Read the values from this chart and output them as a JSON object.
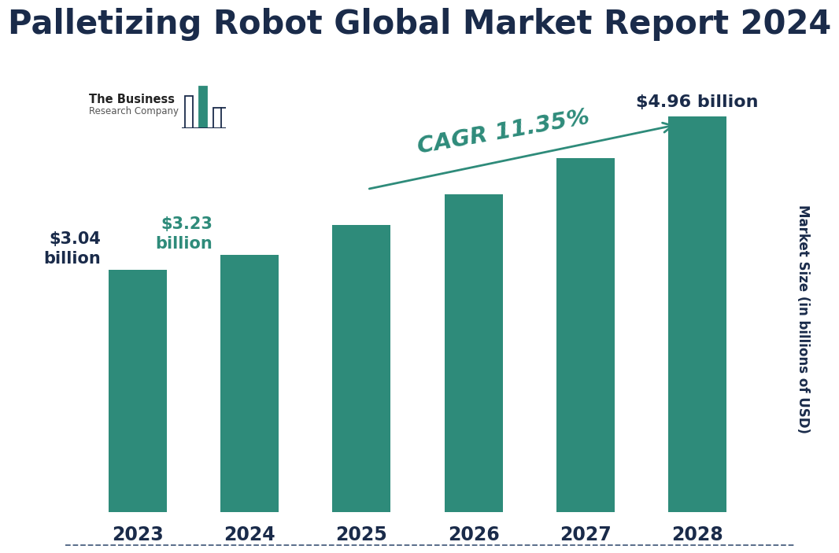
{
  "title": "Palletizing Robot Global Market Report 2024",
  "years": [
    "2023",
    "2024",
    "2025",
    "2026",
    "2027",
    "2028"
  ],
  "values": [
    3.04,
    3.23,
    3.6,
    3.99,
    4.44,
    4.96
  ],
  "bar_color": "#2e8b7a",
  "ylabel": "Market Size (in billions of USD)",
  "title_color": "#1a2b4a",
  "title_fontsize": 30,
  "tick_fontsize": 17,
  "cagr_text": "CAGR 11.35%",
  "cagr_color": "#2e8b7a",
  "background_color": "#ffffff",
  "dashed_line_color": "#4a6080",
  "ylim": [
    0,
    5.8
  ],
  "bar_width": 0.52
}
